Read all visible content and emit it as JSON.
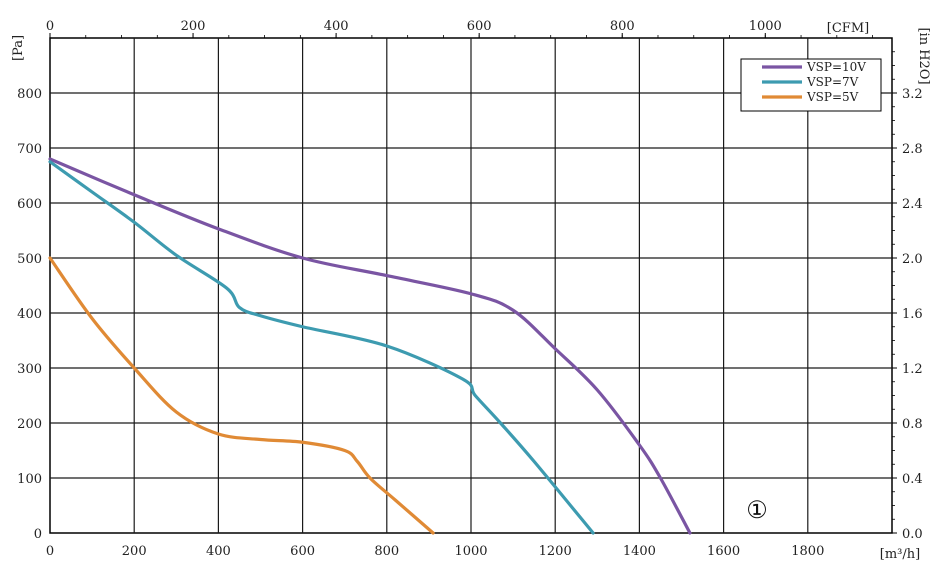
{
  "chart_data": {
    "type": "line",
    "units": {
      "x_bottom": "[m³/h]",
      "x_top": "[CFM]",
      "y_left": "[Pa]",
      "y_right": "[in H2O]"
    },
    "x_bottom_ticks": [
      "0",
      "200",
      "400",
      "600",
      "800",
      "1000",
      "1200",
      "1400",
      "1600",
      "1800"
    ],
    "x_top_ticks": [
      "0",
      "200",
      "400",
      "600",
      "800",
      "1000"
    ],
    "y_left_ticks": [
      "0",
      "100",
      "200",
      "300",
      "400",
      "500",
      "600",
      "700",
      "800"
    ],
    "y_right_ticks": [
      "0.0",
      "0.4",
      "0.8",
      "1.2",
      "1.6",
      "2.0",
      "2.4",
      "2.8",
      "3.2"
    ],
    "xlim": [
      0,
      2000
    ],
    "ylim": [
      0,
      900
    ],
    "grid": true,
    "legend_position": "top-right",
    "annotation": "①",
    "colors": {
      "VSP=10V": "#7a55a3",
      "VSP=7V": "#3d9bb0",
      "VSP=5V": "#e08a35"
    },
    "series": [
      {
        "name": "VSP=10V",
        "x": [
          0,
          200,
          400,
          600,
          800,
          1000,
          1100,
          1200,
          1300,
          1400,
          1450,
          1520
        ],
        "y": [
          680,
          615,
          553,
          500,
          468,
          435,
          405,
          335,
          260,
          160,
          100,
          0
        ]
      },
      {
        "name": "VSP=7V",
        "x": [
          0,
          100,
          200,
          300,
          420,
          450,
          500,
          600,
          800,
          980,
          1010,
          1070,
          1150,
          1290
        ],
        "y": [
          675,
          620,
          565,
          505,
          445,
          410,
          395,
          375,
          340,
          280,
          250,
          200,
          130,
          0
        ]
      },
      {
        "name": "VSP=5V",
        "x": [
          0,
          100,
          200,
          300,
          400,
          500,
          600,
          700,
          730,
          760,
          820,
          910
        ],
        "y": [
          500,
          390,
          300,
          220,
          180,
          170,
          165,
          150,
          130,
          100,
          60,
          0
        ]
      }
    ]
  }
}
